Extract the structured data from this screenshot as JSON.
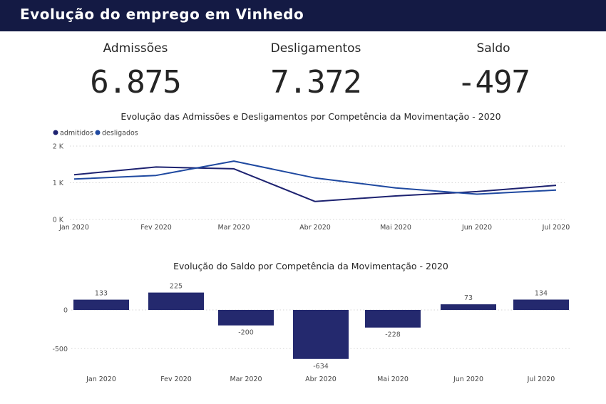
{
  "header": {
    "title": "Evolução do emprego em Vinhedo"
  },
  "kpis": [
    {
      "label": "Admissões",
      "value": "6.875"
    },
    {
      "label": "Desligamentos",
      "value": "7.372"
    },
    {
      "label": "Saldo",
      "value": "-497"
    }
  ],
  "colors": {
    "header_bg": "#141a44",
    "admitidos": "#1d2270",
    "desligados": "#1f49a0",
    "bars": "#24296e"
  },
  "chart_data": [
    {
      "type": "line",
      "title": "Evolução das Admissões e Desligamentos por Competência da Movimentação - 2020",
      "categories": [
        "Jan 2020",
        "Fev 2020",
        "Mar 2020",
        "Abr 2020",
        "Mai 2020",
        "Jun 2020",
        "Jul 2020"
      ],
      "series": [
        {
          "name": "admitidos",
          "values": [
            1220,
            1430,
            1380,
            490,
            640,
            760,
            930
          ]
        },
        {
          "name": "desligados",
          "values": [
            1100,
            1200,
            1590,
            1130,
            860,
            690,
            800
          ]
        }
      ],
      "legend_labels": [
        "admitidos",
        "desligados"
      ],
      "legend": "top-left",
      "yticks": [
        0,
        1000,
        2000
      ],
      "ytick_labels": [
        "0 K",
        "1 K",
        "2 K"
      ],
      "ylim": [
        0,
        2000
      ],
      "grid": true
    },
    {
      "type": "bar",
      "title": "Evolução do Saldo por Competência da Movimentação - 2020",
      "categories": [
        "Jan 2020",
        "Fev 2020",
        "Mar 2020",
        "Abr 2020",
        "Mai 2020",
        "Jun 2020",
        "Jul 2020"
      ],
      "values": [
        133,
        225,
        -200,
        -634,
        -228,
        73,
        134
      ],
      "yticks": [
        0,
        -500
      ],
      "ytick_labels": [
        "0",
        "-500"
      ],
      "ylim": [
        -700,
        260
      ],
      "grid": true
    }
  ]
}
